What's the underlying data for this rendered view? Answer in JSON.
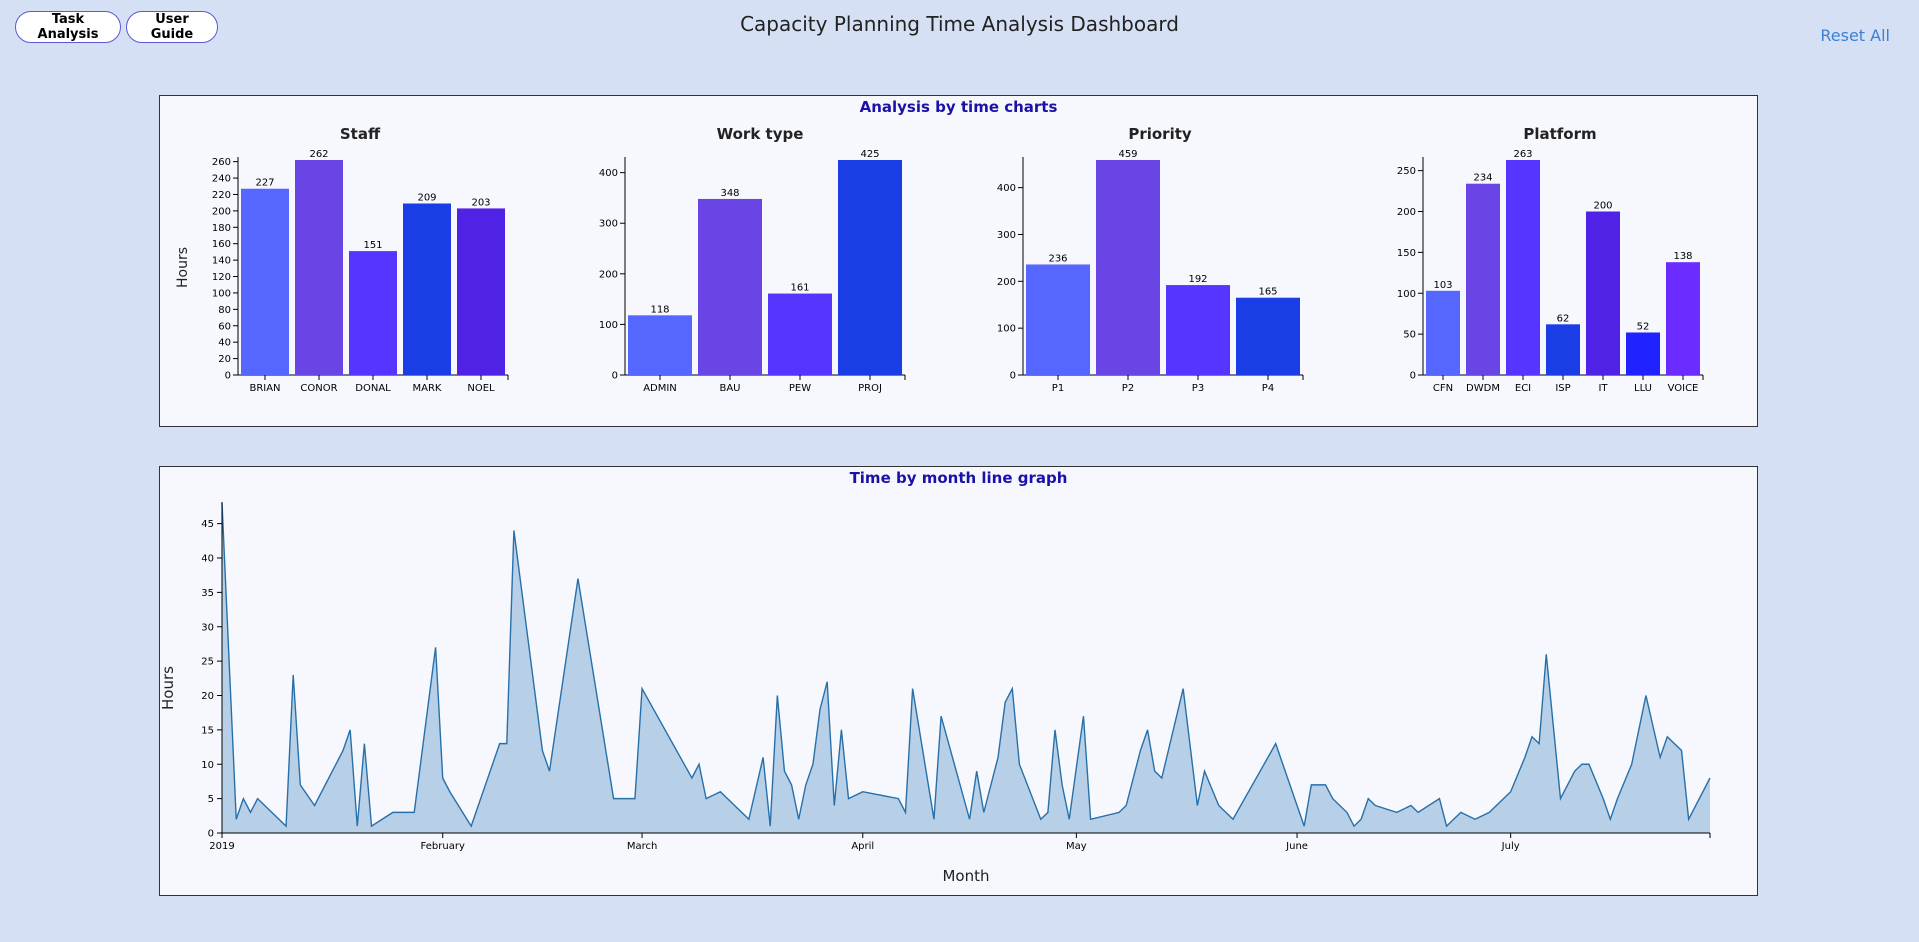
{
  "header": {
    "title": "Capacity Planning Time Analysis Dashboard",
    "task_analysis_label": "Task Analysis",
    "user_guide_label": "User Guide",
    "reset_label": "Reset All"
  },
  "bar_panel": {
    "title": "Analysis by time charts"
  },
  "line_panel": {
    "title": "Time by month line graph"
  },
  "colors": {
    "bar_palette": [
      "#5567ff",
      "#6a45e6",
      "#5535ff",
      "#1a3de6",
      "#5022e6",
      "#2022ff",
      "#6a2cff"
    ],
    "line_stroke": "#2770aa",
    "area_fill": "#b7d0e8"
  },
  "chart_data": [
    {
      "type": "bar",
      "title": "Staff",
      "ylabel": "Hours",
      "categories": [
        "BRIAN",
        "CONOR",
        "DONAL",
        "MARK",
        "NOEL"
      ],
      "values": [
        227,
        262,
        151,
        209,
        203
      ],
      "ylim": [
        0,
        262
      ],
      "yticks": [
        0,
        20,
        40,
        60,
        80,
        100,
        120,
        140,
        160,
        180,
        200,
        220,
        240,
        260
      ],
      "colors": [
        "#5567ff",
        "#6a45e6",
        "#5535ff",
        "#1a3de6",
        "#5022e6"
      ]
    },
    {
      "type": "bar",
      "title": "Work type",
      "categories": [
        "ADMIN",
        "BAU",
        "PEW",
        "PROJ"
      ],
      "values": [
        118,
        348,
        161,
        425
      ],
      "ylim": [
        0,
        425
      ],
      "yticks": [
        0,
        100,
        200,
        300,
        400
      ],
      "colors": [
        "#5567ff",
        "#6a45e6",
        "#5535ff",
        "#1a3de6"
      ]
    },
    {
      "type": "bar",
      "title": "Priority",
      "categories": [
        "P1",
        "P2",
        "P3",
        "P4"
      ],
      "values": [
        236,
        459,
        192,
        165
      ],
      "ylim": [
        0,
        459
      ],
      "yticks": [
        0,
        100,
        200,
        300,
        400
      ],
      "colors": [
        "#5567ff",
        "#6a45e6",
        "#5535ff",
        "#1a3de6"
      ]
    },
    {
      "type": "bar",
      "title": "Platform",
      "categories": [
        "CFN",
        "DWDM",
        "ECI",
        "ISP",
        "IT",
        "LLU",
        "VOICE"
      ],
      "values": [
        103,
        234,
        263,
        62,
        200,
        52,
        138
      ],
      "ylim": [
        0,
        263
      ],
      "yticks": [
        0,
        50,
        100,
        150,
        200,
        250
      ],
      "colors": [
        "#5567ff",
        "#6a45e6",
        "#5535ff",
        "#1a3de6",
        "#5022e6",
        "#2022ff",
        "#6a2cff"
      ]
    },
    {
      "type": "area",
      "xlabel": "Month",
      "ylabel": "Hours",
      "xlim": [
        "2019-01-01",
        "2019-07-29"
      ],
      "ylim": [
        0,
        48
      ],
      "yticks": [
        0,
        5,
        10,
        15,
        20,
        25,
        30,
        35,
        40,
        45
      ],
      "xticks": [
        {
          "date": "2019-01-01",
          "label": "2019"
        },
        {
          "date": "2019-02-01",
          "label": "February"
        },
        {
          "date": "2019-03-01",
          "label": "March"
        },
        {
          "date": "2019-04-01",
          "label": "April"
        },
        {
          "date": "2019-05-01",
          "label": "May"
        },
        {
          "date": "2019-06-01",
          "label": "June"
        },
        {
          "date": "2019-07-01",
          "label": "July"
        }
      ],
      "points": [
        [
          "2019-01-01",
          48
        ],
        [
          "2019-01-03",
          2
        ],
        [
          "2019-01-04",
          5
        ],
        [
          "2019-01-05",
          3
        ],
        [
          "2019-01-06",
          5
        ],
        [
          "2019-01-10",
          1
        ],
        [
          "2019-01-11",
          23
        ],
        [
          "2019-01-12",
          7
        ],
        [
          "2019-01-14",
          4
        ],
        [
          "2019-01-18",
          12
        ],
        [
          "2019-01-19",
          15
        ],
        [
          "2019-01-20",
          1
        ],
        [
          "2019-01-21",
          13
        ],
        [
          "2019-01-22",
          1
        ],
        [
          "2019-01-25",
          3
        ],
        [
          "2019-01-28",
          3
        ],
        [
          "2019-01-31",
          27
        ],
        [
          "2019-02-01",
          8
        ],
        [
          "2019-02-02",
          6
        ],
        [
          "2019-02-05",
          1
        ],
        [
          "2019-02-09",
          13
        ],
        [
          "2019-02-10",
          13
        ],
        [
          "2019-02-11",
          44
        ],
        [
          "2019-02-15",
          12
        ],
        [
          "2019-02-16",
          9
        ],
        [
          "2019-02-20",
          37
        ],
        [
          "2019-02-25",
          5
        ],
        [
          "2019-02-28",
          5
        ],
        [
          "2019-03-01",
          21
        ],
        [
          "2019-03-08",
          8
        ],
        [
          "2019-03-09",
          10
        ],
        [
          "2019-03-10",
          5
        ],
        [
          "2019-03-12",
          6
        ],
        [
          "2019-03-16",
          2
        ],
        [
          "2019-03-18",
          11
        ],
        [
          "2019-03-19",
          1
        ],
        [
          "2019-03-20",
          20
        ],
        [
          "2019-03-21",
          9
        ],
        [
          "2019-03-22",
          7
        ],
        [
          "2019-03-23",
          2
        ],
        [
          "2019-03-24",
          7
        ],
        [
          "2019-03-25",
          10
        ],
        [
          "2019-03-26",
          18
        ],
        [
          "2019-03-27",
          22
        ],
        [
          "2019-03-28",
          4
        ],
        [
          "2019-03-29",
          15
        ],
        [
          "2019-03-30",
          5
        ],
        [
          "2019-04-01",
          6
        ],
        [
          "2019-04-06",
          5
        ],
        [
          "2019-04-07",
          3
        ],
        [
          "2019-04-08",
          21
        ],
        [
          "2019-04-11",
          2
        ],
        [
          "2019-04-12",
          17
        ],
        [
          "2019-04-16",
          2
        ],
        [
          "2019-04-17",
          9
        ],
        [
          "2019-04-18",
          3
        ],
        [
          "2019-04-20",
          11
        ],
        [
          "2019-04-21",
          19
        ],
        [
          "2019-04-22",
          21
        ],
        [
          "2019-04-23",
          10
        ],
        [
          "2019-04-26",
          2
        ],
        [
          "2019-04-27",
          3
        ],
        [
          "2019-04-28",
          15
        ],
        [
          "2019-04-29",
          7
        ],
        [
          "2019-04-30",
          2
        ],
        [
          "2019-05-02",
          17
        ],
        [
          "2019-05-03",
          2
        ],
        [
          "2019-05-07",
          3
        ],
        [
          "2019-05-08",
          4
        ],
        [
          "2019-05-10",
          12
        ],
        [
          "2019-05-11",
          15
        ],
        [
          "2019-05-12",
          9
        ],
        [
          "2019-05-13",
          8
        ],
        [
          "2019-05-16",
          21
        ],
        [
          "2019-05-18",
          4
        ],
        [
          "2019-05-19",
          9
        ],
        [
          "2019-05-21",
          4
        ],
        [
          "2019-05-23",
          2
        ],
        [
          "2019-05-29",
          13
        ],
        [
          "2019-06-02",
          1
        ],
        [
          "2019-06-03",
          7
        ],
        [
          "2019-06-05",
          7
        ],
        [
          "2019-06-06",
          5
        ],
        [
          "2019-06-08",
          3
        ],
        [
          "2019-06-09",
          1
        ],
        [
          "2019-06-10",
          2
        ],
        [
          "2019-06-11",
          5
        ],
        [
          "2019-06-12",
          4
        ],
        [
          "2019-06-15",
          3
        ],
        [
          "2019-06-17",
          4
        ],
        [
          "2019-06-18",
          3
        ],
        [
          "2019-06-21",
          5
        ],
        [
          "2019-06-22",
          1
        ],
        [
          "2019-06-24",
          3
        ],
        [
          "2019-06-26",
          2
        ],
        [
          "2019-06-28",
          3
        ],
        [
          "2019-07-01",
          6
        ],
        [
          "2019-07-03",
          11
        ],
        [
          "2019-07-04",
          14
        ],
        [
          "2019-07-05",
          13
        ],
        [
          "2019-07-06",
          26
        ],
        [
          "2019-07-08",
          5
        ],
        [
          "2019-07-10",
          9
        ],
        [
          "2019-07-11",
          10
        ],
        [
          "2019-07-12",
          10
        ],
        [
          "2019-07-14",
          5
        ],
        [
          "2019-07-15",
          2
        ],
        [
          "2019-07-16",
          5
        ],
        [
          "2019-07-18",
          10
        ],
        [
          "2019-07-20",
          20
        ],
        [
          "2019-07-22",
          11
        ],
        [
          "2019-07-23",
          14
        ],
        [
          "2019-07-25",
          12
        ],
        [
          "2019-07-26",
          2
        ],
        [
          "2019-07-29",
          8
        ]
      ]
    }
  ]
}
